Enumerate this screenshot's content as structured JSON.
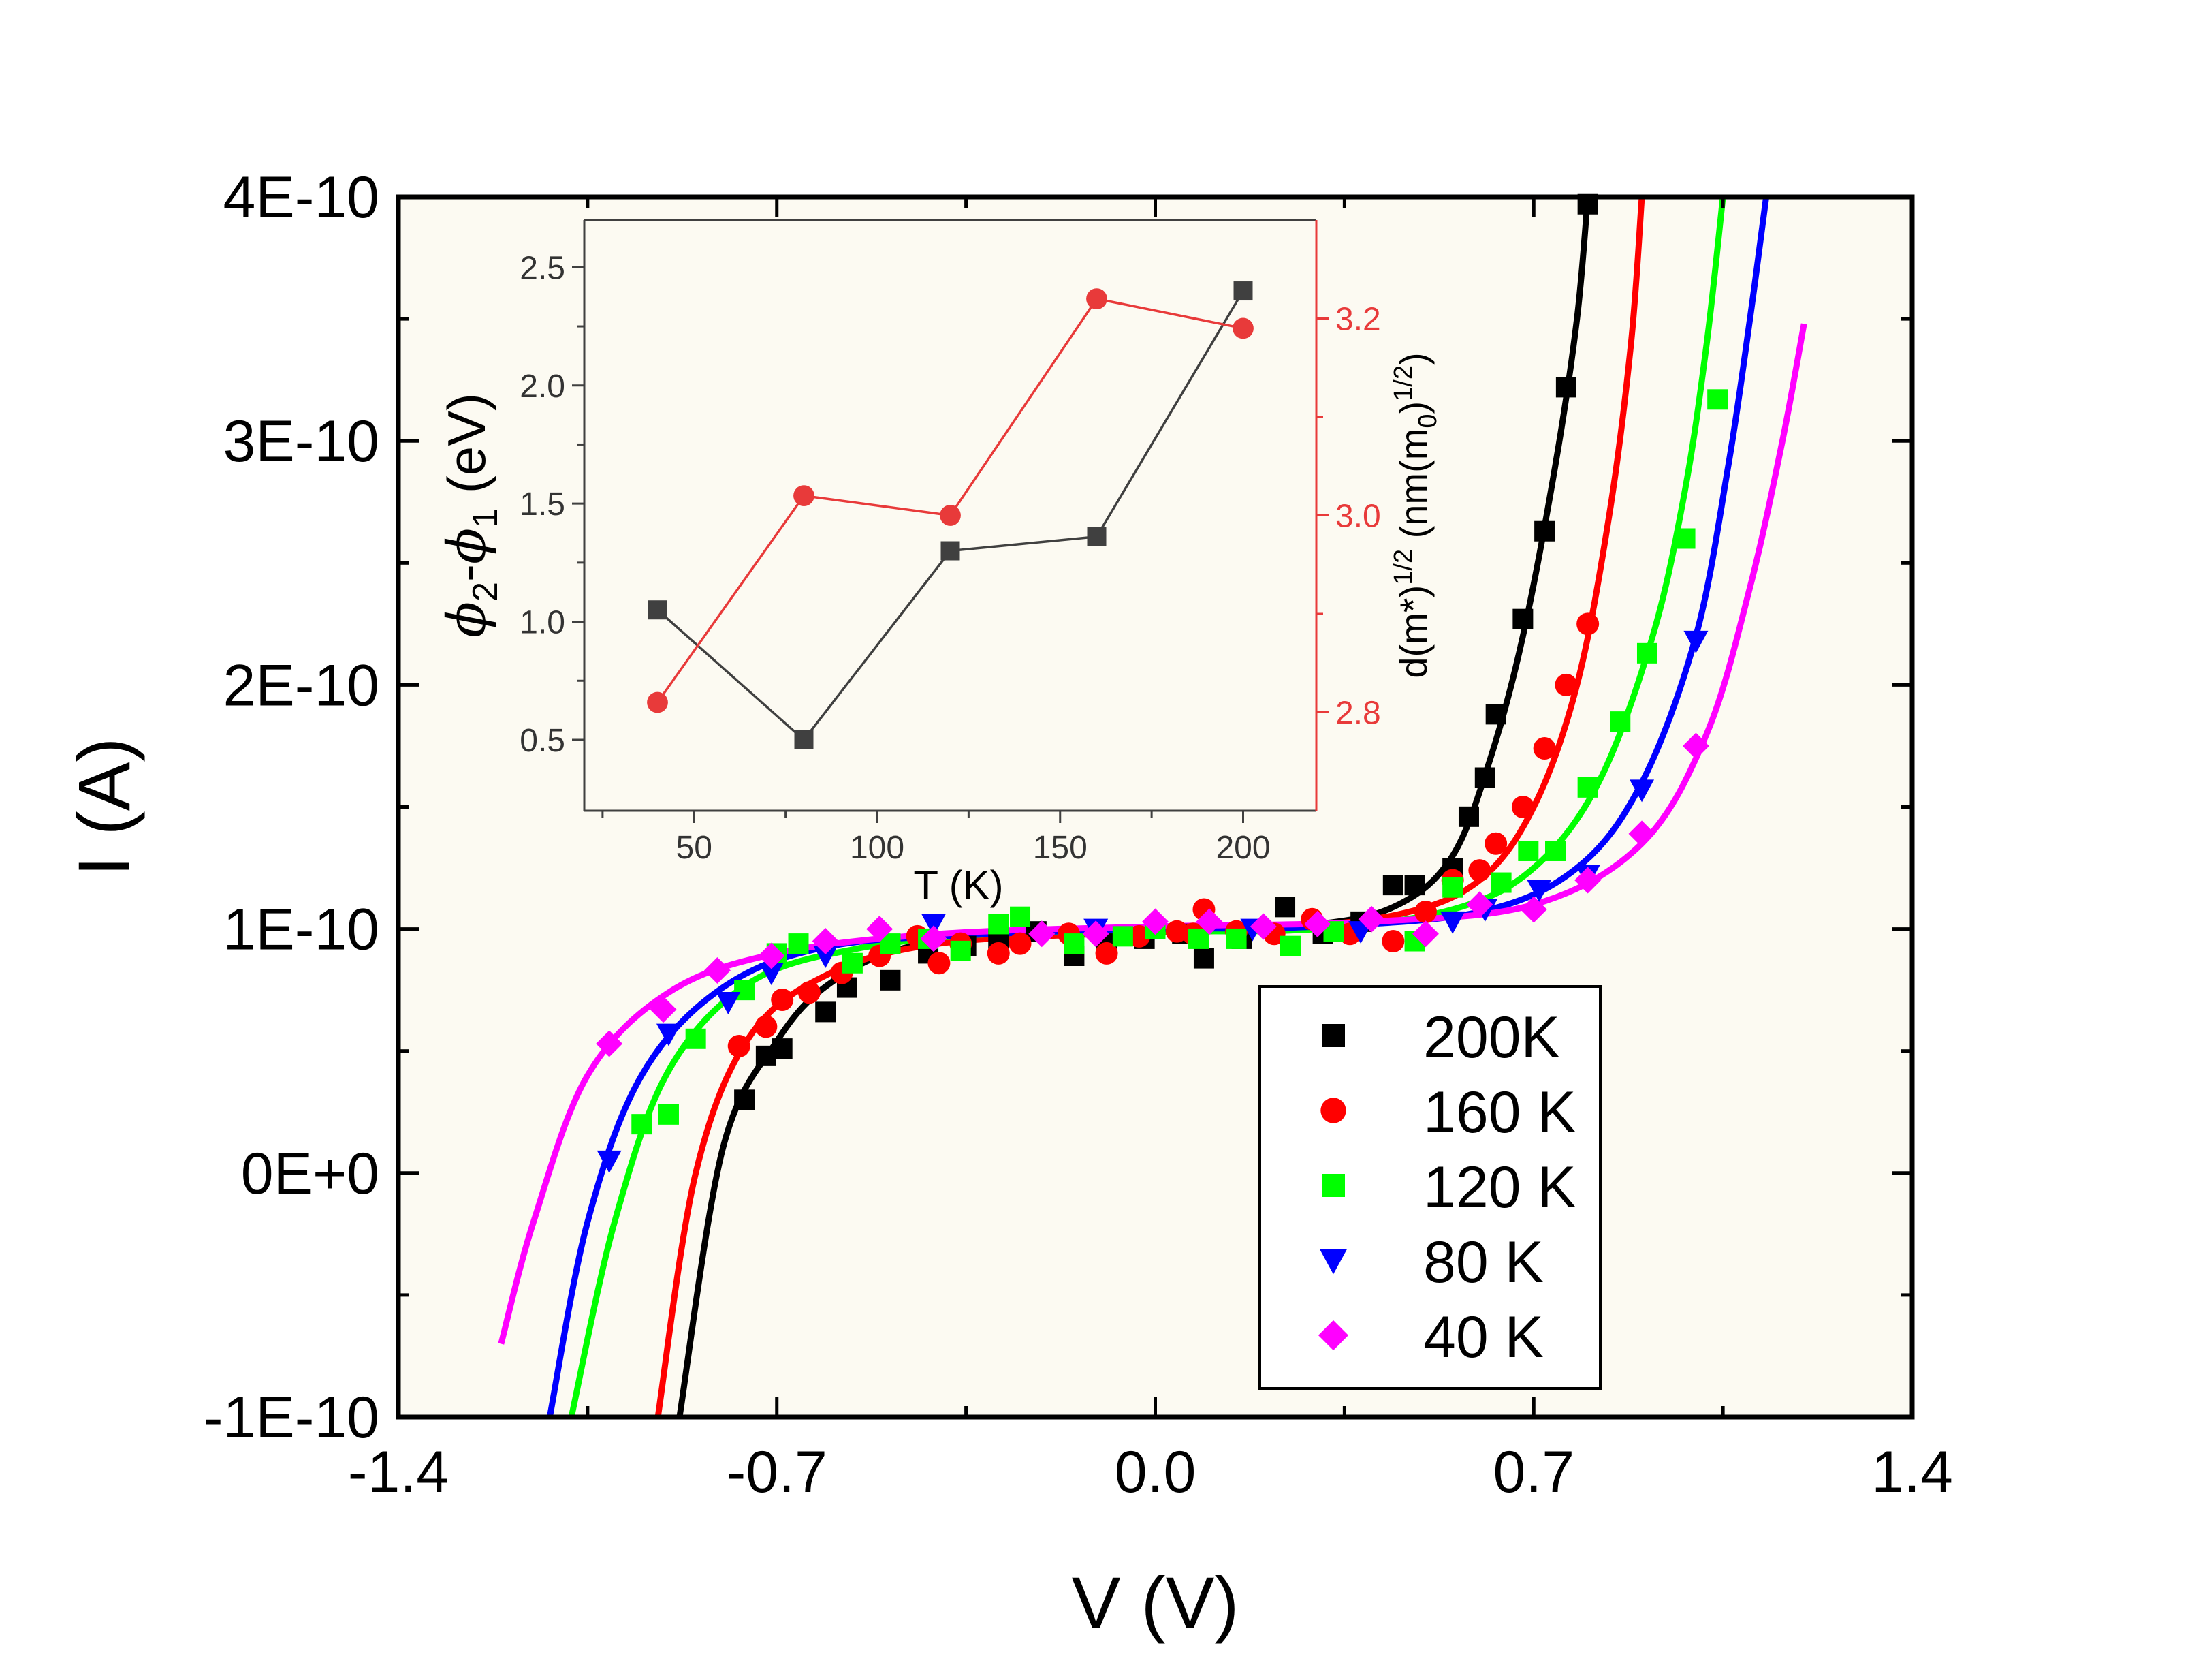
{
  "chart_data": [
    {
      "type": "scatter",
      "xlabel": "V (V)",
      "ylabel": "I (A)",
      "xlim": [
        -1.4,
        1.4
      ],
      "ylim": [
        -1e-10,
        4e-10
      ],
      "x_ticks": [
        -1.4,
        -0.7,
        0.0,
        0.7,
        1.4
      ],
      "x_tick_labels": [
        "-1.4",
        "-0.7",
        "0.0",
        "0.7",
        "1.4"
      ],
      "y_ticks": [
        -1e-10,
        0,
        1e-10,
        2e-10,
        3e-10,
        4e-10
      ],
      "y_tick_labels": [
        "-1E-10",
        "0E+0",
        "1E-10",
        "2E-10",
        "3E-10",
        "4E-10"
      ],
      "grid": false,
      "legend_position": "bottom-right",
      "background": "#fcfaf2",
      "series": [
        {
          "name": "200K",
          "color": "#000000",
          "marker": "square",
          "points": [
            [
              -0.76,
              3e-11
            ],
            [
              -0.72,
              4.8e-11
            ],
            [
              -0.69,
              5.1e-11
            ],
            [
              -0.61,
              6.6e-11
            ],
            [
              -0.57,
              7.6e-11
            ],
            [
              -0.49,
              7.9e-11
            ],
            [
              -0.42,
              9e-11
            ],
            [
              -0.35,
              9.3e-11
            ],
            [
              -0.29,
              9.6e-11
            ],
            [
              -0.22,
              9.9e-11
            ],
            [
              -0.15,
              8.9e-11
            ],
            [
              -0.09,
              9.4e-11
            ],
            [
              -0.02,
              9.6e-11
            ],
            [
              0.05,
              9.8e-11
            ],
            [
              0.09,
              8.8e-11
            ],
            [
              0.16,
              9.6e-11
            ],
            [
              0.24,
              1.09e-10
            ],
            [
              0.31,
              9.8e-11
            ],
            [
              0.38,
              1.03e-10
            ],
            [
              0.44,
              1.18e-10
            ],
            [
              0.48,
              1.18e-10
            ],
            [
              0.55,
              1.25e-10
            ],
            [
              0.58,
              1.46e-10
            ],
            [
              0.61,
              1.62e-10
            ],
            [
              0.63,
              1.88e-10
            ],
            [
              0.68,
              2.27e-10
            ],
            [
              0.72,
              2.63e-10
            ],
            [
              0.76,
              3.22e-10
            ],
            [
              0.8,
              3.97e-10
            ]
          ],
          "curve": [
            [
              -0.88,
              -1e-10
            ],
            [
              -0.8,
              1e-11
            ],
            [
              -0.7,
              5.4e-11
            ],
            [
              -0.6,
              7.8e-11
            ],
            [
              -0.45,
              9.3e-11
            ],
            [
              -0.2,
              9.8e-11
            ],
            [
              0.0,
              9.9e-11
            ],
            [
              0.3,
              1.02e-10
            ],
            [
              0.45,
              1.1e-10
            ],
            [
              0.55,
              1.3e-10
            ],
            [
              0.62,
              1.7e-10
            ],
            [
              0.68,
              2.2e-10
            ],
            [
              0.74,
              2.9e-10
            ],
            [
              0.78,
              3.5e-10
            ],
            [
              0.8,
              4e-10
            ]
          ]
        },
        {
          "name": "160 K",
          "color": "#ff0000",
          "marker": "circle",
          "points": [
            [
              -0.77,
              5.2e-11
            ],
            [
              -0.72,
              6e-11
            ],
            [
              -0.69,
              7.1e-11
            ],
            [
              -0.64,
              7.4e-11
            ],
            [
              -0.58,
              8.2e-11
            ],
            [
              -0.51,
              8.9e-11
            ],
            [
              -0.44,
              9.7e-11
            ],
            [
              -0.4,
              8.6e-11
            ],
            [
              -0.36,
              9.4e-11
            ],
            [
              -0.29,
              9e-11
            ],
            [
              -0.25,
              9.4e-11
            ],
            [
              -0.16,
              9.8e-11
            ],
            [
              -0.09,
              9e-11
            ],
            [
              -0.03,
              9.7e-11
            ],
            [
              0.04,
              9.9e-11
            ],
            [
              0.07,
              9.8e-11
            ],
            [
              0.09,
              1.08e-10
            ],
            [
              0.15,
              9.9e-11
            ],
            [
              0.22,
              9.8e-11
            ],
            [
              0.29,
              1.04e-10
            ],
            [
              0.36,
              9.8e-11
            ],
            [
              0.44,
              9.5e-11
            ],
            [
              0.5,
              1.07e-10
            ],
            [
              0.55,
              1.2e-10
            ],
            [
              0.6,
              1.24e-10
            ],
            [
              0.63,
              1.35e-10
            ],
            [
              0.68,
              1.5e-10
            ],
            [
              0.72,
              1.74e-10
            ],
            [
              0.76,
              2e-10
            ],
            [
              0.8,
              2.25e-10
            ]
          ],
          "curve": [
            [
              -0.92,
              -1e-10
            ],
            [
              -0.85,
              0.0
            ],
            [
              -0.75,
              5.6e-11
            ],
            [
              -0.6,
              8.2e-11
            ],
            [
              -0.4,
              9.4e-11
            ],
            [
              -0.1,
              9.8e-11
            ],
            [
              0.2,
              1e-10
            ],
            [
              0.45,
              1.06e-10
            ],
            [
              0.6,
              1.2e-10
            ],
            [
              0.7,
              1.5e-10
            ],
            [
              0.78,
              2e-10
            ],
            [
              0.84,
              2.7e-10
            ],
            [
              0.88,
              3.4e-10
            ],
            [
              0.9,
              4e-10
            ]
          ]
        },
        {
          "name": "120 K",
          "color": "#00ff00",
          "marker": "square",
          "points": [
            [
              -0.95,
              2e-11
            ],
            [
              -0.9,
              2.4e-11
            ],
            [
              -0.85,
              5.5e-11
            ],
            [
              -0.76,
              7.5e-11
            ],
            [
              -0.7,
              9e-11
            ],
            [
              -0.66,
              9.4e-11
            ],
            [
              -0.56,
              8.6e-11
            ],
            [
              -0.49,
              9.4e-11
            ],
            [
              -0.42,
              9.6e-11
            ],
            [
              -0.36,
              9.1e-11
            ],
            [
              -0.29,
              1.02e-10
            ],
            [
              -0.25,
              1.05e-10
            ],
            [
              -0.15,
              9.4e-11
            ],
            [
              -0.06,
              9.7e-11
            ],
            [
              0.0,
              1e-10
            ],
            [
              0.08,
              9.6e-11
            ],
            [
              0.15,
              9.6e-11
            ],
            [
              0.25,
              9.3e-11
            ],
            [
              0.33,
              9.9e-11
            ],
            [
              0.48,
              9.5e-11
            ],
            [
              0.55,
              1.17e-10
            ],
            [
              0.64,
              1.19e-10
            ],
            [
              0.69,
              1.32e-10
            ],
            [
              0.74,
              1.32e-10
            ],
            [
              0.8,
              1.58e-10
            ],
            [
              0.86,
              1.85e-10
            ],
            [
              0.91,
              2.13e-10
            ],
            [
              0.98,
              2.6e-10
            ],
            [
              1.04,
              3.17e-10
            ]
          ],
          "curve": [
            [
              -1.08,
              -1e-10
            ],
            [
              -1.0,
              -2e-11
            ],
            [
              -0.9,
              4.2e-11
            ],
            [
              -0.75,
              7.8e-11
            ],
            [
              -0.55,
              9.2e-11
            ],
            [
              -0.3,
              9.8e-11
            ],
            [
              0.0,
              9.9e-11
            ],
            [
              0.3,
              1e-10
            ],
            [
              0.55,
              1.08e-10
            ],
            [
              0.7,
              1.25e-10
            ],
            [
              0.82,
              1.6e-10
            ],
            [
              0.92,
              2.2e-10
            ],
            [
              0.98,
              2.8e-10
            ],
            [
              1.02,
              3.4e-10
            ],
            [
              1.05,
              4e-10
            ]
          ]
        },
        {
          "name": "80 K",
          "color": "#0000ff",
          "marker": "triangle-down",
          "points": [
            [
              -1.01,
              5e-12
            ],
            [
              -0.9,
              5.7e-11
            ],
            [
              -0.79,
              7e-11
            ],
            [
              -0.71,
              8.2e-11
            ],
            [
              -0.61,
              8.9e-11
            ],
            [
              -0.41,
              1.02e-10
            ],
            [
              -0.11,
              1e-10
            ],
            [
              0.18,
              1e-10
            ],
            [
              0.38,
              9.9e-11
            ],
            [
              0.55,
              1.03e-10
            ],
            [
              0.61,
              1.08e-10
            ],
            [
              0.71,
              1.16e-10
            ],
            [
              0.8,
              1.22e-10
            ],
            [
              0.9,
              1.57e-10
            ],
            [
              1.0,
              2.18e-10
            ]
          ],
          "curve": [
            [
              -1.12,
              -1e-10
            ],
            [
              -1.05,
              -2e-11
            ],
            [
              -0.95,
              4e-11
            ],
            [
              -0.8,
              7.6e-11
            ],
            [
              -0.6,
              9.3e-11
            ],
            [
              -0.3,
              9.8e-11
            ],
            [
              0.0,
              1e-10
            ],
            [
              0.3,
              1.01e-10
            ],
            [
              0.6,
              1.07e-10
            ],
            [
              0.78,
              1.25e-10
            ],
            [
              0.9,
              1.6e-10
            ],
            [
              1.0,
              2.2e-10
            ],
            [
              1.06,
              2.9e-10
            ],
            [
              1.1,
              3.5e-10
            ],
            [
              1.13,
              4e-10
            ]
          ]
        },
        {
          "name": "40 K",
          "color": "#ff00ff",
          "marker": "diamond",
          "points": [
            [
              -1.01,
              5.3e-11
            ],
            [
              -0.91,
              6.7e-11
            ],
            [
              -0.81,
              8.3e-11
            ],
            [
              -0.71,
              8.9e-11
            ],
            [
              -0.61,
              9.5e-11
            ],
            [
              -0.51,
              1e-10
            ],
            [
              -0.41,
              9.6e-11
            ],
            [
              -0.21,
              9.8e-11
            ],
            [
              -0.11,
              9.8e-11
            ],
            [
              0.0,
              1.03e-10
            ],
            [
              0.1,
              1.03e-10
            ],
            [
              0.2,
              1.01e-10
            ],
            [
              0.3,
              1.02e-10
            ],
            [
              0.4,
              1.04e-10
            ],
            [
              0.5,
              9.8e-11
            ],
            [
              0.6,
              1.1e-10
            ],
            [
              0.7,
              1.08e-10
            ],
            [
              0.8,
              1.2e-10
            ],
            [
              0.9,
              1.39e-10
            ],
            [
              1.0,
              1.75e-10
            ]
          ],
          "curve": [
            [
              -1.21,
              -7e-11
            ],
            [
              -1.15,
              -2e-11
            ],
            [
              -1.05,
              4e-11
            ],
            [
              -0.9,
              7.4e-11
            ],
            [
              -0.7,
              9e-11
            ],
            [
              -0.4,
              9.8e-11
            ],
            [
              0.0,
              1.01e-10
            ],
            [
              0.4,
              1.03e-10
            ],
            [
              0.7,
              1.1e-10
            ],
            [
              0.9,
              1.35e-10
            ],
            [
              1.02,
              1.8e-10
            ],
            [
              1.1,
              2.4e-10
            ],
            [
              1.16,
              3e-10
            ],
            [
              1.2,
              3.48e-10
            ]
          ]
        }
      ]
    },
    {
      "type": "line",
      "role": "inset",
      "xlabel": "T (K)",
      "ylabel_left": "φ₂-φ₁ (eV)",
      "ylabel_right": "d(m*)^1/2 (nm(m₀)^1/2)",
      "xlim": [
        20,
        220
      ],
      "ylim_left": [
        0.2,
        2.7
      ],
      "ylim_right": [
        2.7,
        3.3
      ],
      "x_ticks": [
        50,
        100,
        150,
        200
      ],
      "y_ticks_left": [
        0.5,
        1.0,
        1.5,
        2.0,
        2.5
      ],
      "y_ticks_right": [
        2.8,
        3.0,
        3.2
      ],
      "x": [
        40,
        80,
        120,
        160,
        200
      ],
      "series": [
        {
          "name": "φ₂-φ₁",
          "axis": "left",
          "color": "#404040",
          "marker": "square",
          "values": [
            1.05,
            0.5,
            1.3,
            1.36,
            2.4
          ]
        },
        {
          "name": "d(m*)^1/2",
          "axis": "right",
          "color": "#e83a3a",
          "marker": "circle",
          "values": [
            2.81,
            3.02,
            3.0,
            3.22,
            3.19
          ]
        }
      ]
    }
  ]
}
